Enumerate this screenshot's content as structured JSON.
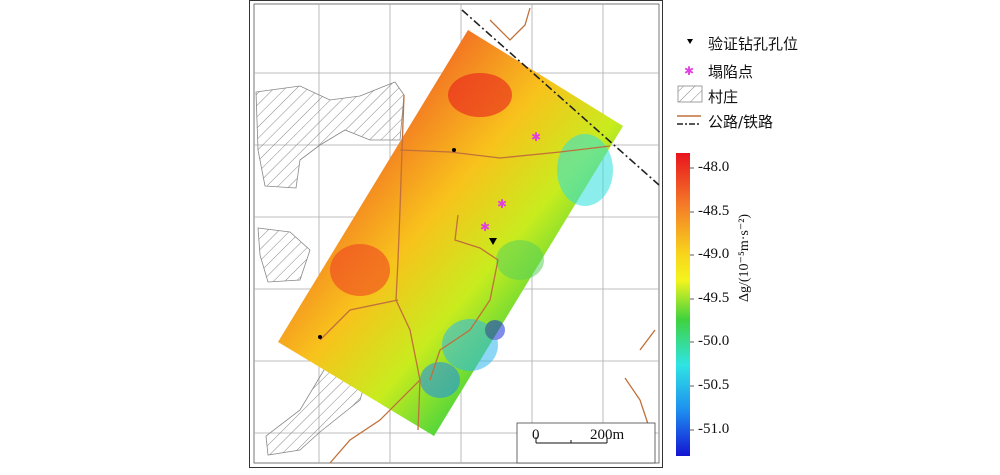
{
  "legend": {
    "items": [
      {
        "label": "验证钻孔孔位",
        "icon": "triangle-down-icon",
        "color": "#000000"
      },
      {
        "label": "塌陷点",
        "icon": "star-icon",
        "color": "#e040e0"
      },
      {
        "label": "村庄",
        "icon": "hatch-icon",
        "color": "#999999"
      },
      {
        "label": "公路/铁路",
        "icon": "road-rail-icon",
        "color": "#c0703a"
      }
    ]
  },
  "colorbar": {
    "title": "Δg/(10⁻⁵m·s⁻²)",
    "ticks": [
      "-48.0",
      "-48.5",
      "-49.0",
      "-49.5",
      "-50.0",
      "-50.5",
      "-51.0"
    ],
    "colors": [
      "#e8141e",
      "#f47a28",
      "#f8d31c",
      "#f4f41e",
      "#3fd23f",
      "#2fe4e4",
      "#1e8ef0",
      "#1414d2"
    ]
  },
  "scalebar": {
    "start_label": "0",
    "end_label": "200m"
  },
  "colors": {
    "road": "#c0703a",
    "grid": "#aaaaaa",
    "village": "#888888"
  }
}
